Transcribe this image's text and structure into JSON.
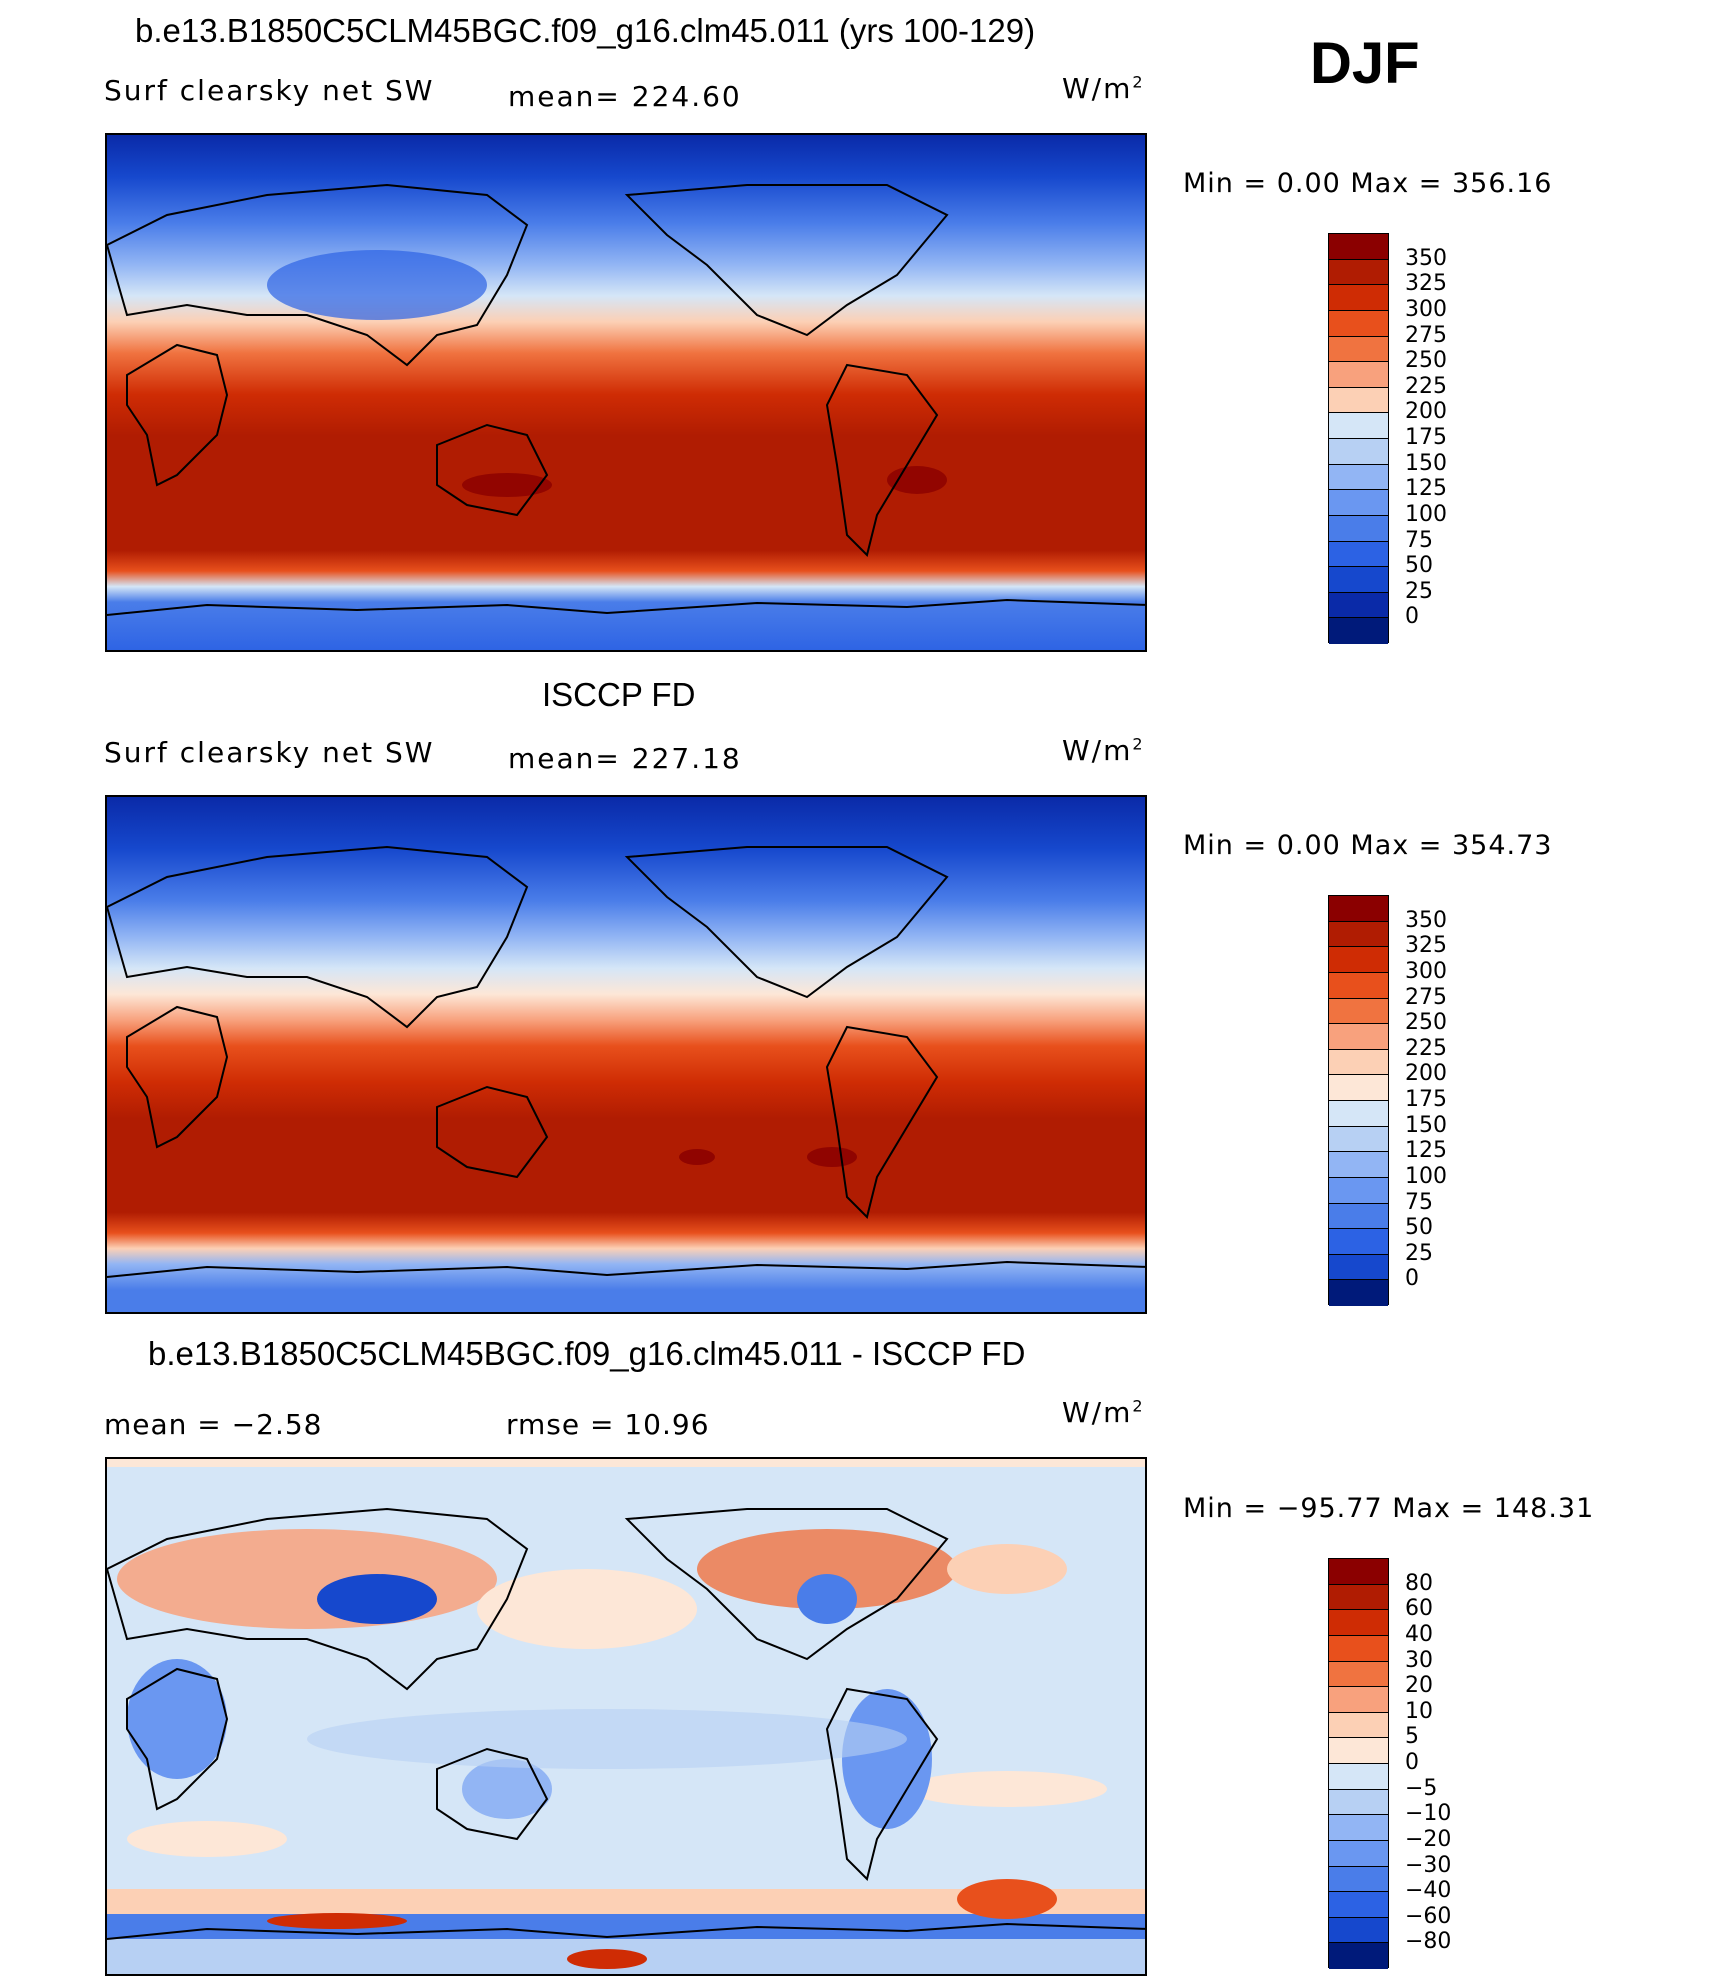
{
  "season": "DJF",
  "panels": [
    {
      "id": "model",
      "title": "b.e13.B1850C5CLM45BGC.f09_g16.clm45.011 (yrs 100-129)",
      "left_label": "Surf clearsky net SW",
      "center_label": "mean=  224.60",
      "units_base": "W/m",
      "units_sup": "2",
      "minmax": "Min  =     0.00  Max  =  356.16",
      "colorbar": {
        "ticks": [
          "350",
          "325",
          "300",
          "275",
          "250",
          "225",
          "200",
          "175",
          "150",
          "125",
          "100",
          "75",
          "50",
          "25",
          "0"
        ],
        "colors": [
          "#8b0000",
          "#b01c02",
          "#cf2c04",
          "#e8501c",
          "#f07340",
          "#f8a17d",
          "#fcd0b5",
          "#d5e6f7",
          "#b7d0f3",
          "#92b5f4",
          "#6a97f1",
          "#4a7de9",
          "#2c62e4",
          "#1648cd",
          "#0a2aa8",
          "#001a7a"
        ]
      }
    },
    {
      "id": "obs",
      "title": "ISCCP FD",
      "left_label": "Surf clearsky net SW",
      "center_label": "mean=  227.18",
      "units_base": "W/m",
      "units_sup": "2",
      "minmax": "Min  =     0.00  Max  =  354.73",
      "colorbar": {
        "ticks": [
          "350",
          "325",
          "300",
          "275",
          "250",
          "225",
          "200",
          "175",
          "150",
          "125",
          "100",
          "75",
          "50",
          "25",
          "0"
        ],
        "colors": [
          "#8b0000",
          "#b01c02",
          "#cf2c04",
          "#e8501c",
          "#f07340",
          "#f8a17d",
          "#fcd0b5",
          "#fde7d7",
          "#d5e6f7",
          "#b7d0f3",
          "#92b5f4",
          "#6a97f1",
          "#4a7de9",
          "#2c62e4",
          "#1648cd",
          "#001a7a"
        ]
      }
    },
    {
      "id": "diff",
      "title": "b.e13.B1850C5CLM45BGC.f09_g16.clm45.011 - ISCCP FD",
      "left_label": "mean  =    −2.58",
      "center_label": "rmse  =    10.96",
      "units_base": "W/m",
      "units_sup": "2",
      "minmax": "Min  = −95.77  Max  =  148.31",
      "colorbar": {
        "ticks": [
          "80",
          "60",
          "40",
          "30",
          "20",
          "10",
          "5",
          "0",
          "−5",
          "−10",
          "−20",
          "−30",
          "−40",
          "−60",
          "−80"
        ],
        "colors": [
          "#8b0000",
          "#b01c02",
          "#cf2c04",
          "#e8501c",
          "#f07340",
          "#f8a17d",
          "#fcd0b5",
          "#fde7d7",
          "#d5e6f7",
          "#b7d0f3",
          "#92b5f4",
          "#6a97f1",
          "#4a7de9",
          "#2c62e4",
          "#1648cd",
          "#001a7a"
        ]
      }
    }
  ]
}
